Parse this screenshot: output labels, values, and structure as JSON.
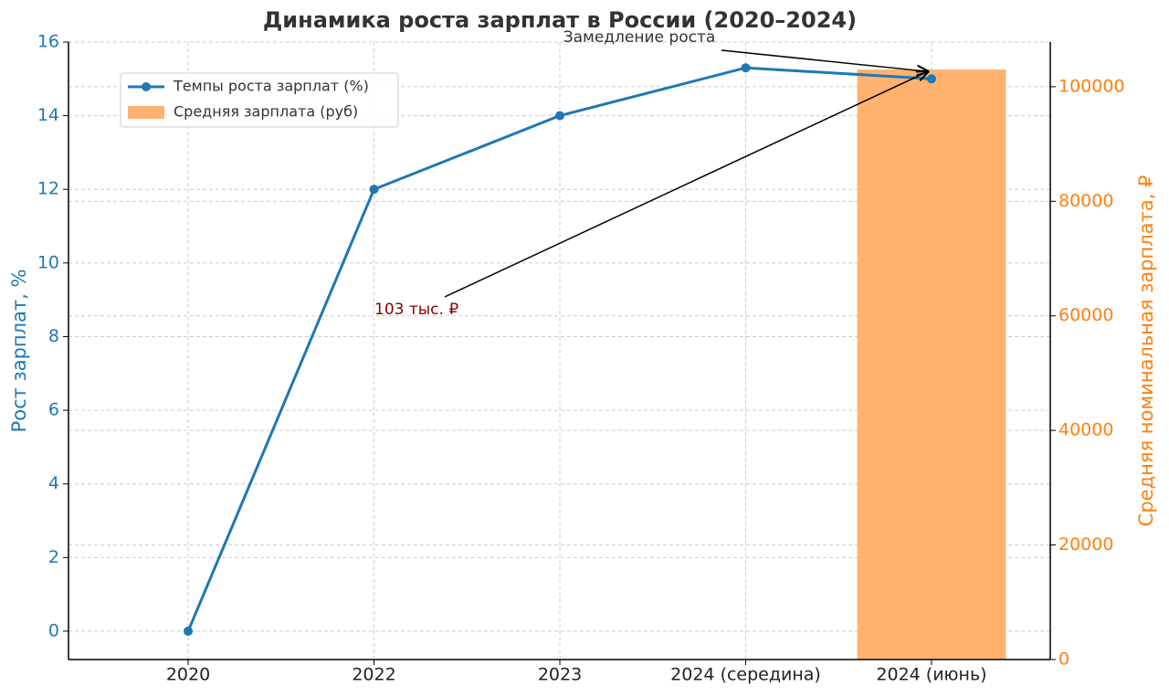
{
  "chart_data": {
    "type": "bar-line",
    "title": "Динамика роста зарплат в России (2020–2024)",
    "y_label": "Рост зарплат, %",
    "y2_label": "Средняя номинальная зарплата, ₽",
    "categories": [
      "2020",
      "2022",
      "2023",
      "2024 (середина)",
      "2024 (июнь)"
    ],
    "series": [
      {
        "name": "Темпы роста зарплат (%)",
        "type": "line",
        "color": "#1f77b4",
        "values": [
          0,
          12,
          14,
          15.3,
          15.0
        ]
      },
      {
        "name": "Средняя зарплата (руб)",
        "type": "bar",
        "axis": "y2",
        "color": "#ffb26e",
        "values": [
          null,
          null,
          null,
          null,
          103000
        ]
      }
    ],
    "ylim": [
      -0.77,
      16
    ],
    "yticks": [
      0,
      2,
      4,
      6,
      8,
      10,
      12,
      14,
      16
    ],
    "y2lim": [
      0,
      107800
    ],
    "y2ticks": [
      0,
      20000,
      40000,
      60000,
      80000,
      100000
    ],
    "y2_color": "#ff7f0e",
    "y_color": "#1f77b4",
    "grid": true,
    "legend": "upper left",
    "annotations": [
      {
        "text": "Замедление роста",
        "color": "#333333"
      },
      {
        "text": "103 тыс. ₽",
        "color": "#8b0000"
      }
    ]
  }
}
